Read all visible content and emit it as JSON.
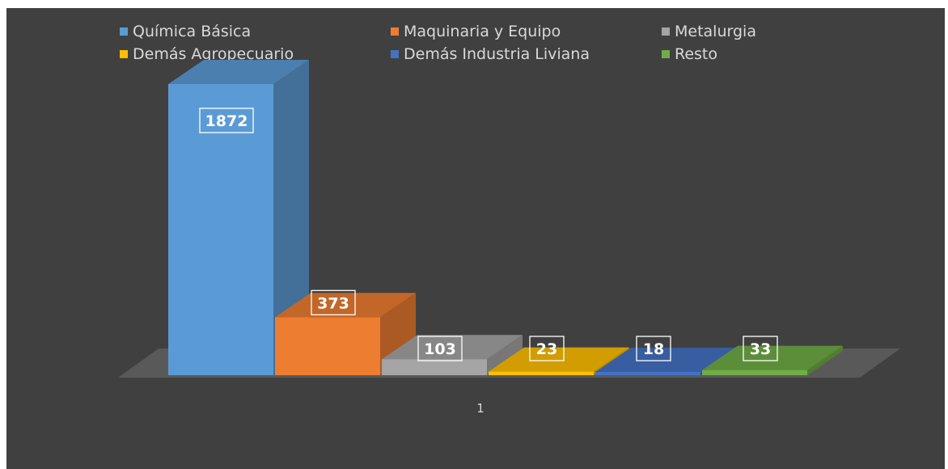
{
  "chart_data": {
    "type": "bar",
    "categories": [
      "1"
    ],
    "series": [
      {
        "name": "Química Básica",
        "values": [
          1872
        ],
        "color": "#5b9bd5"
      },
      {
        "name": "Maquinaria y Equipo",
        "values": [
          373
        ],
        "color": "#ed7d31"
      },
      {
        "name": "Metalurgia",
        "values": [
          103
        ],
        "color": "#a5a5a5"
      },
      {
        "name": "Demás Agropecuario",
        "values": [
          23
        ],
        "color": "#ffc000"
      },
      {
        "name": "Demás Industria Liviana",
        "values": [
          18
        ],
        "color": "#4472c4"
      },
      {
        "name": "Resto",
        "values": [
          33
        ],
        "color": "#70ad47"
      }
    ],
    "title": "",
    "xlabel": "",
    "ylabel": "",
    "ylim": [
      0,
      1872
    ],
    "legend_position": "top",
    "grid": false,
    "style": "3d-clustered-column",
    "data_labels": [
      "1872",
      "373",
      "103",
      "23",
      "18",
      "33"
    ],
    "category_label": "1"
  },
  "colors": {
    "background": "#404040",
    "floor": "#595959",
    "text": "#d9d9d9"
  }
}
